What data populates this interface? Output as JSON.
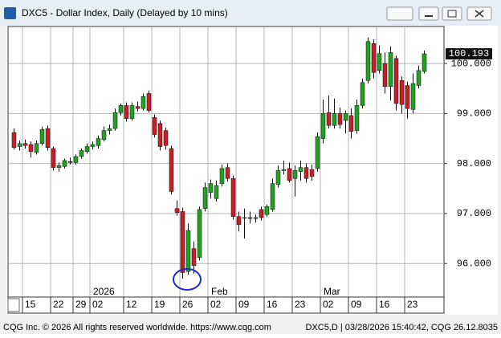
{
  "window": {
    "title": "DXC5 - Dollar Index, Daily (Delayed by 10 mins)",
    "status_left": "CQG Inc. © 2026 All rights reserved worldwide. https://www.cqg.com",
    "status_right": "DXC5,D | 03/28/2026 15:40:42, CQG 26.12.8035"
  },
  "chart_data": {
    "type": "candlestick",
    "categories": [
      null,
      null,
      "15",
      null,
      null,
      null,
      null,
      "22",
      null,
      null,
      null,
      "29",
      null,
      null,
      "02",
      null,
      null,
      null,
      null,
      null,
      "12",
      null,
      null,
      null,
      null,
      "19",
      null,
      null,
      null,
      null,
      "26",
      null,
      null,
      null,
      null,
      "02",
      null,
      null,
      null,
      null,
      "09",
      null,
      null,
      null,
      null,
      "16",
      null,
      null,
      null,
      null,
      "23",
      null,
      null,
      null,
      null,
      "02",
      null,
      null,
      null,
      null,
      "09",
      null,
      null,
      null,
      null,
      "16",
      null,
      null,
      null,
      null,
      "23",
      null,
      null,
      null
    ],
    "months": [
      null,
      null,
      null,
      null,
      null,
      null,
      null,
      null,
      null,
      null,
      null,
      null,
      null,
      null,
      "2026",
      null,
      null,
      null,
      null,
      null,
      null,
      null,
      null,
      null,
      null,
      null,
      null,
      null,
      null,
      null,
      null,
      null,
      null,
      null,
      null,
      "Feb",
      null,
      null,
      null,
      null,
      null,
      null,
      null,
      null,
      null,
      null,
      null,
      null,
      null,
      null,
      null,
      null,
      null,
      null,
      null,
      "Mar",
      null,
      null,
      null,
      null,
      null,
      null,
      null,
      null,
      null,
      null,
      null,
      null,
      null,
      null,
      null,
      null,
      null,
      null
    ],
    "open": [
      98.62,
      98.34,
      98.4,
      98.38,
      98.22,
      98.4,
      98.7,
      98.3,
      97.92,
      97.94,
      98.04,
      98.02,
      98.14,
      98.24,
      98.34,
      98.36,
      98.48,
      98.66,
      98.7,
      99.02,
      99.16,
      98.9,
      99.14,
      99.1,
      99.4,
      98.92,
      98.8,
      98.66,
      98.3,
      97.1,
      97.04,
      95.84,
      96.3,
      96.12,
      97.1,
      97.42,
      97.3,
      97.6,
      97.92,
      97.7,
      96.94,
      96.92,
      96.92,
      96.9,
      97.08,
      96.98,
      97.08,
      97.58,
      97.86,
      97.9,
      97.7,
      97.84,
      97.92,
      97.88,
      97.9,
      98.5,
      99.02,
      98.76,
      99.0,
      98.86,
      98.96,
      98.66,
      99.16,
      99.66,
      100.4,
      99.86,
      100.0,
      99.54,
      100.1,
      99.66,
      99.56,
      99.08,
      99.56,
      99.84
    ],
    "high": [
      98.7,
      98.46,
      98.48,
      98.44,
      98.46,
      98.74,
      98.76,
      98.34,
      98.02,
      98.1,
      98.12,
      98.18,
      98.3,
      98.4,
      98.44,
      98.56,
      98.74,
      98.78,
      99.1,
      99.2,
      99.22,
      99.22,
      99.24,
      99.4,
      99.46,
      98.98,
      98.86,
      98.72,
      98.36,
      97.26,
      97.12,
      96.8,
      96.44,
      97.14,
      97.62,
      97.68,
      97.66,
      97.98,
      98.0,
      97.76,
      97.04,
      97.1,
      97.04,
      96.98,
      97.14,
      97.18,
      97.7,
      97.96,
      98.06,
      98.02,
      97.96,
      98.06,
      98.0,
      97.98,
      98.62,
      99.28,
      99.36,
      99.3,
      99.12,
      99.06,
      99.1,
      99.28,
      99.7,
      100.52,
      100.48,
      100.36,
      100.22,
      100.34,
      100.16,
      99.74,
      99.64,
      99.8,
      99.96,
      100.26
    ],
    "low": [
      98.28,
      98.26,
      98.3,
      98.12,
      98.18,
      98.36,
      98.26,
      97.86,
      97.84,
      97.9,
      97.98,
      97.98,
      98.1,
      98.2,
      98.28,
      98.3,
      98.44,
      98.58,
      98.66,
      98.96,
      98.84,
      98.86,
      99.04,
      99.06,
      99.02,
      98.52,
      98.26,
      98.28,
      97.38,
      96.96,
      95.7,
      95.78,
      95.8,
      96.06,
      97.04,
      97.3,
      97.24,
      97.54,
      97.64,
      96.88,
      96.64,
      96.5,
      96.8,
      96.82,
      96.86,
      96.94,
      97.04,
      97.52,
      97.78,
      97.62,
      97.34,
      97.66,
      97.62,
      97.66,
      97.84,
      98.4,
      98.7,
      98.7,
      98.7,
      98.6,
      98.5,
      98.6,
      99.1,
      99.6,
      99.7,
      99.8,
      99.4,
      99.26,
      99.06,
      99.0,
      98.9,
      99.0,
      99.5,
      99.8
    ],
    "close": [
      98.32,
      98.4,
      98.36,
      98.24,
      98.4,
      98.68,
      98.32,
      97.92,
      97.96,
      98.06,
      98.02,
      98.14,
      98.26,
      98.34,
      98.38,
      98.5,
      98.66,
      98.7,
      99.02,
      99.16,
      98.9,
      99.16,
      99.1,
      99.34,
      99.06,
      98.58,
      98.34,
      98.36,
      97.44,
      97.02,
      95.82,
      96.66,
      95.96,
      97.08,
      97.52,
      97.6,
      97.56,
      97.9,
      97.7,
      96.94,
      96.78,
      96.92,
      96.9,
      96.92,
      96.92,
      97.14,
      97.6,
      97.86,
      97.88,
      97.66,
      97.86,
      97.92,
      97.7,
      97.74,
      98.54,
      99.0,
      98.76,
      99.0,
      98.78,
      99.0,
      98.64,
      99.16,
      99.62,
      100.44,
      99.82,
      100.2,
      99.54,
      100.22,
      99.2,
      99.18,
      99.1,
      99.6,
      99.86,
      100.193
    ],
    "up_color": "#23a023",
    "down_color": "#c81e28",
    "last_value": 100.193,
    "ylim": [
      95.33,
      100.74
    ],
    "yticks": [
      {
        "value": 96,
        "label": "96.000"
      },
      {
        "value": 97,
        "label": "97.000"
      },
      {
        "value": 98,
        "label": "98.000"
      },
      {
        "value": 99,
        "label": "99.000"
      },
      {
        "value": 100,
        "label": "100.000"
      }
    ],
    "grid": true
  }
}
